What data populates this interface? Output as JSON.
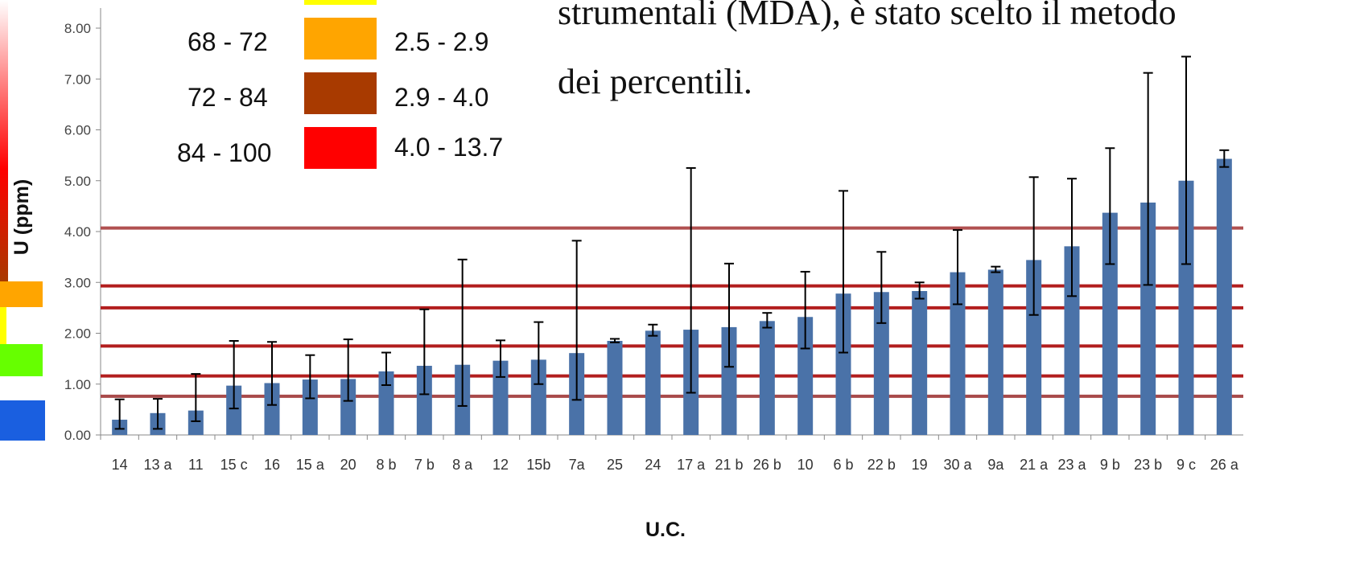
{
  "overlay": {
    "line1": "strumentali (MDA), è stato scelto il metodo",
    "line2": "dei percentili."
  },
  "legend": [
    {
      "percentile": "68 - 72",
      "range": "2.5 - 2.9",
      "color": "#FFA500"
    },
    {
      "percentile": "72 - 84",
      "range": "2.9 - 4.0",
      "color": "#A83A00"
    },
    {
      "percentile": "84 - 100",
      "range": "4.0 - 13.7",
      "color": "#FF0000"
    }
  ],
  "legend_top_color": "#FFFF00",
  "side_scale_colors": {
    "gradient_top": "#FFFFFF",
    "gradient_mid": "#FF0000",
    "gradient_low": "#A83A00",
    "orange": "#FFA500",
    "yellow": "#FFFF00",
    "green": "#66FF00",
    "blue": "#1A5FE0"
  },
  "chart_data": {
    "type": "bar",
    "xlabel": "U.C.",
    "ylabel": "U (ppm)",
    "ylim": [
      0,
      8
    ],
    "yticks": [
      "0.00",
      "1.00",
      "2.00",
      "3.00",
      "4.00",
      "5.00",
      "6.00",
      "7.00",
      "8.00"
    ],
    "bar_color": "#4A72A8",
    "categories": [
      "14",
      "13 a",
      "11",
      "15 c",
      "16",
      "15 a",
      "20",
      "8 b",
      "7 b",
      "8 a",
      "12",
      "15b",
      "7a",
      "25",
      "24",
      "17 a",
      "21 b",
      "26 b",
      "10",
      "6 b",
      "22 b",
      "19",
      "30 a",
      "9a",
      "21 a",
      "23 a",
      "9 b",
      "23 b",
      "9 c",
      "26 a"
    ],
    "values": [
      0.3,
      0.43,
      0.48,
      0.97,
      1.02,
      1.09,
      1.1,
      1.25,
      1.36,
      1.38,
      1.46,
      1.48,
      1.61,
      1.85,
      2.05,
      2.07,
      2.12,
      2.24,
      2.32,
      2.78,
      2.81,
      2.83,
      3.2,
      3.25,
      3.44,
      3.71,
      4.37,
      4.57,
      5.0,
      5.43
    ],
    "error_low": [
      0.12,
      0.12,
      0.27,
      0.52,
      0.59,
      0.72,
      0.67,
      0.98,
      0.8,
      0.57,
      1.14,
      1.0,
      0.69,
      1.82,
      1.95,
      0.83,
      1.34,
      2.11,
      1.7,
      1.62,
      2.2,
      2.68,
      2.57,
      3.2,
      2.36,
      2.73,
      3.36,
      2.95,
      3.36,
      5.27
    ],
    "error_high": [
      0.7,
      0.71,
      1.2,
      1.85,
      1.83,
      1.57,
      1.88,
      1.62,
      2.47,
      3.45,
      1.86,
      2.22,
      3.82,
      1.89,
      2.17,
      5.25,
      3.37,
      2.4,
      3.21,
      4.8,
      3.6,
      3.0,
      4.03,
      3.31,
      5.07,
      5.04,
      5.64,
      7.12,
      7.44,
      5.6
    ],
    "threshold_lines": [
      {
        "y": 0.76,
        "color": "#A84A4A"
      },
      {
        "y": 1.16,
        "color": "#B21E1E"
      },
      {
        "y": 1.75,
        "color": "#B21E1E"
      },
      {
        "y": 2.5,
        "color": "#B21E1E"
      },
      {
        "y": 2.93,
        "color": "#B21E1E"
      },
      {
        "y": 4.07,
        "color": "#B05050"
      }
    ]
  }
}
